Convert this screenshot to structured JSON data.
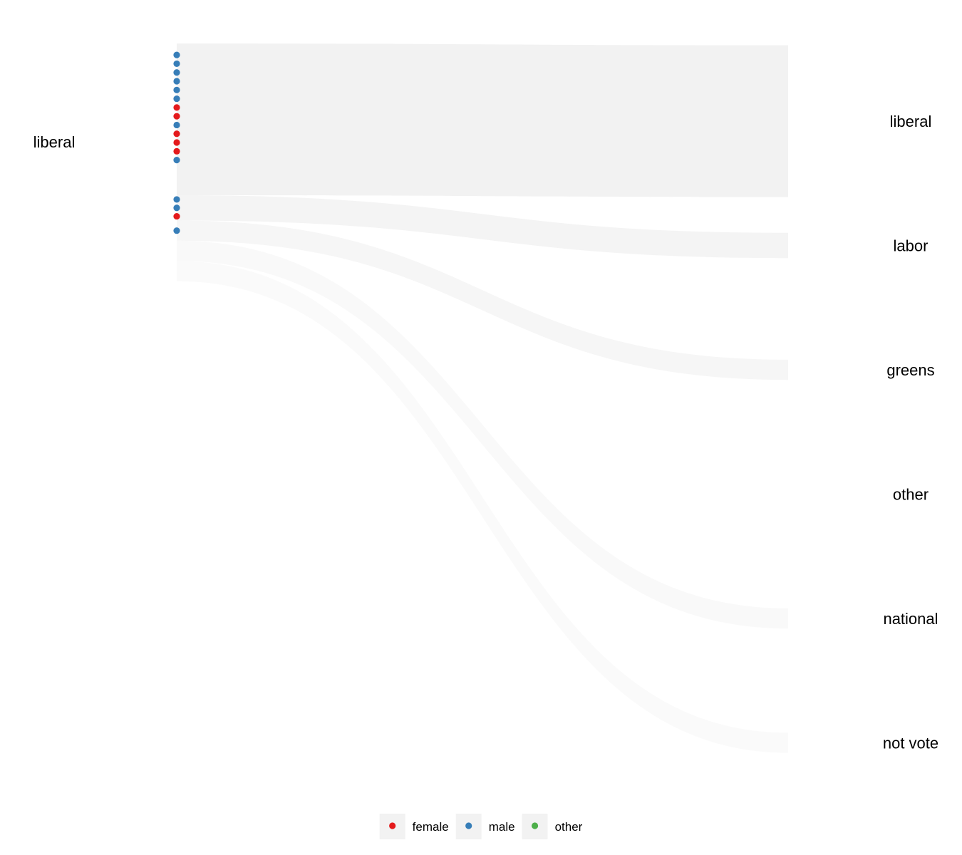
{
  "chart_data": {
    "type": "sankey",
    "source_nodes": [
      "liberal"
    ],
    "target_nodes": [
      "liberal",
      "labor",
      "greens",
      "other",
      "national",
      "not vote"
    ],
    "flows": [
      {
        "from": "liberal",
        "to": "liberal",
        "count": 30,
        "opacity": 0.05
      },
      {
        "from": "liberal",
        "to": "labor",
        "count": 5,
        "opacity": 0.045
      },
      {
        "from": "liberal",
        "to": "greens",
        "count": 4,
        "opacity": 0.035
      },
      {
        "from": "liberal",
        "to": "other",
        "count": 0,
        "opacity": 0.025
      },
      {
        "from": "liberal",
        "to": "national",
        "count": 4,
        "opacity": 0.025
      },
      {
        "from": "liberal",
        "to": "not vote",
        "count": 4,
        "opacity": 0.02
      }
    ],
    "points": [
      {
        "flow": "liberal",
        "gender": "male"
      },
      {
        "flow": "liberal",
        "gender": "male"
      },
      {
        "flow": "liberal",
        "gender": "male"
      },
      {
        "flow": "liberal",
        "gender": "male"
      },
      {
        "flow": "liberal",
        "gender": "male"
      },
      {
        "flow": "liberal",
        "gender": "male"
      },
      {
        "flow": "liberal",
        "gender": "female"
      },
      {
        "flow": "liberal",
        "gender": "female"
      },
      {
        "flow": "liberal",
        "gender": "male"
      },
      {
        "flow": "liberal",
        "gender": "female"
      },
      {
        "flow": "liberal",
        "gender": "female"
      },
      {
        "flow": "liberal",
        "gender": "female"
      },
      {
        "flow": "liberal",
        "gender": "male"
      },
      {
        "flow": "labor",
        "gender": "male"
      },
      {
        "flow": "labor",
        "gender": "male"
      },
      {
        "flow": "labor",
        "gender": "female"
      },
      {
        "flow": "greens",
        "gender": "male"
      }
    ],
    "legend": {
      "placement": "bottom",
      "entries": [
        {
          "label": "female",
          "color": "#E41A1C"
        },
        {
          "label": "male",
          "color": "#377EB8"
        },
        {
          "label": "other",
          "color": "#4DAF4A"
        }
      ]
    },
    "flow_color": "#000000",
    "grid": false
  }
}
